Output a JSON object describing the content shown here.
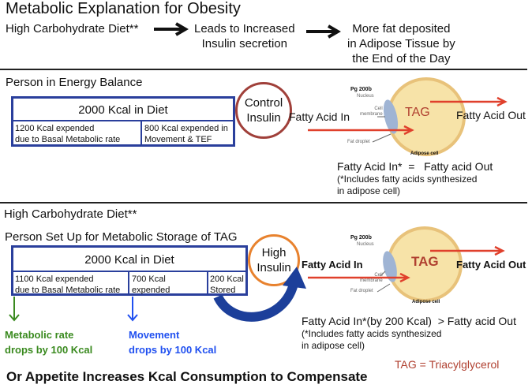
{
  "title": "Metabolic Explanation for Obesity",
  "flow": [
    "High Carbohydrate Diet**",
    "Leads to Increased\nInsulin secretion",
    "More fat deposited\nin Adipose Tissue by\nthe End of the Day"
  ],
  "balance": {
    "heading": "Person in Energy Balance",
    "diet": "2000 Kcal in Diet",
    "basal": "1200 Kcal expended\n due to Basal Metabolic rate",
    "movement": "800 Kcal expended in\nMovement & TEF",
    "insulin": "Control\nInsulin",
    "fa_in": "Fatty Acid In",
    "fa_out": "Fatty Acid Out",
    "tag": "TAG",
    "cell_labels": {
      "title": "Pg 200b",
      "nucleus": "Nucleus",
      "membrane": "Cell\nmembrane",
      "droplet": "Fat droplet",
      "cell": "Adipose cell"
    },
    "equation": "Fatty Acid In*  =   Fatty acid Out",
    "note": "(*Includes fatty acids synthesized\nin adipose cell)"
  },
  "storage": {
    "diet_heading": "High Carbohydrate Diet**",
    "heading": "Person Set Up for Metabolic Storage of TAG",
    "diet": "2000 Kcal in Diet",
    "basal": " 1100 Kcal expended\n   due to Basal Metabolic rate",
    "movement": "700 Kcal expended\n in Movement",
    "stored": "200 Kcal\nStored",
    "insulin": "High\nInsulin",
    "fa_in": "Fatty Acid In",
    "fa_out": "Fatty Acid Out",
    "tag": "TAG",
    "cell_labels": {
      "title": "Pg 200b",
      "nucleus": "Nucleus",
      "membrane": "Cell\nmembrane",
      "droplet": "Fat droplet",
      "cell": "Adipose cell"
    },
    "metabolic_drop": "Metabolic rate\ndrops by 100 Kcal",
    "movement_drop": "Movement\ndrops by 100 Kcal",
    "equation": "Fatty Acid In*(by 200 Kcal)  > Fatty acid Out",
    "note": "(*Includes fatty acids synthesized\nin adipose cell)"
  },
  "conclusion": "Or Appetite Increases Kcal Consumption to Compensate",
  "legend": "TAG = Triacylglycerol",
  "colors": {
    "box": "#2a3f9c",
    "control": "#a0403a",
    "high": "#e8822e",
    "green": "#3a8a1f",
    "blue": "#2050f0",
    "arrow_red": "#e0402c",
    "tag": "#b04030"
  }
}
